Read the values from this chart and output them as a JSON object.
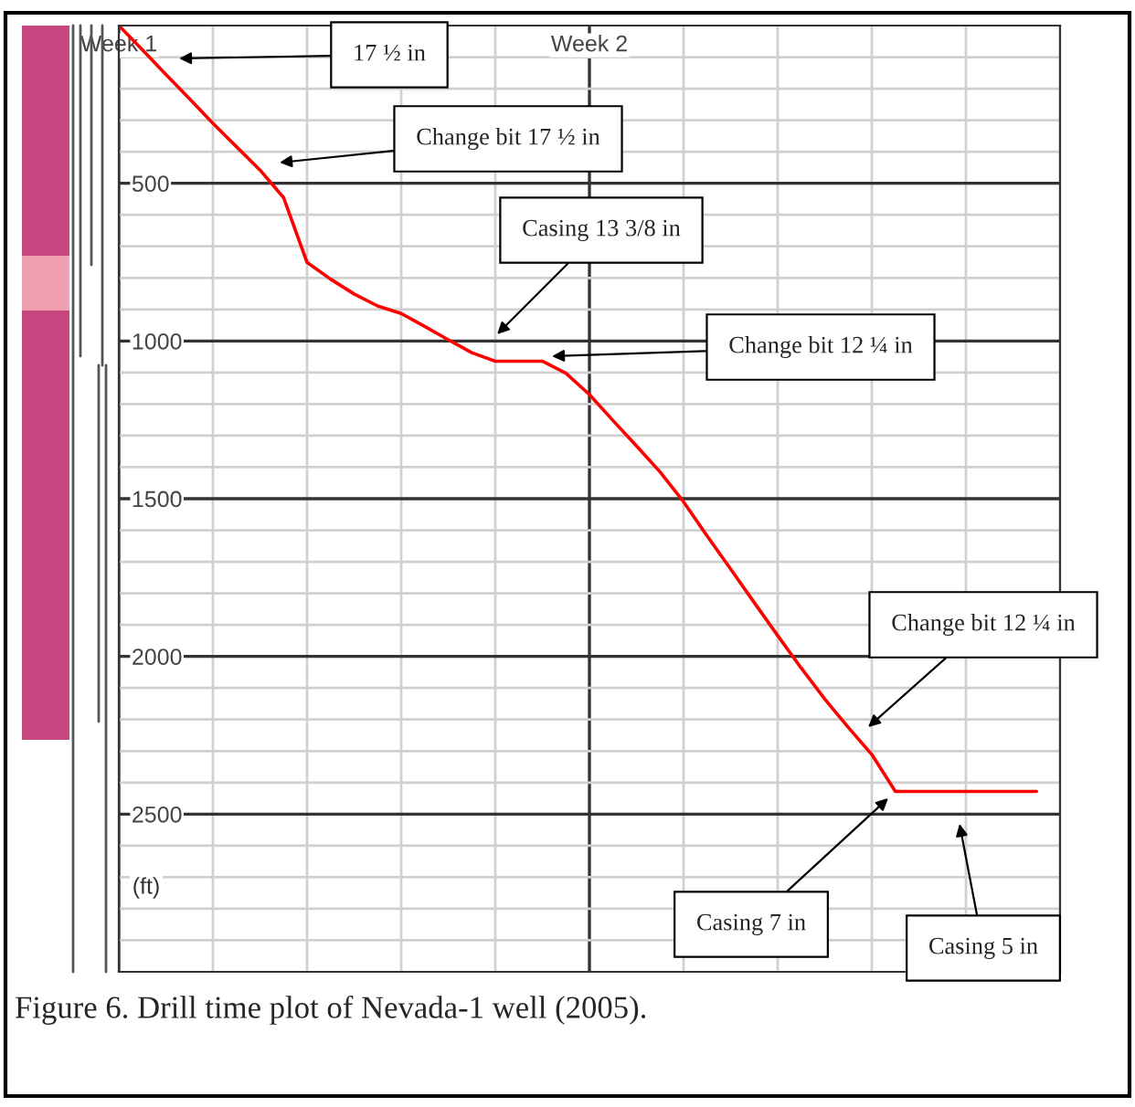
{
  "chart_data": {
    "type": "line",
    "categories": [
      "Week 1",
      null,
      null,
      null,
      null,
      null,
      null,
      null,
      null,
      null,
      null,
      null,
      null,
      null,
      null,
      null,
      null,
      null,
      null,
      null,
      "Week 2",
      null,
      null,
      null,
      null,
      null,
      null,
      null,
      null,
      null,
      null,
      null,
      null,
      null,
      null,
      null,
      null,
      null,
      null,
      null,
      null
    ],
    "series": [
      {
        "color": "#ff0000",
        "values": [
          0,
          77,
          155,
          232,
          310,
          384,
          458,
          545,
          751,
          804,
          851,
          889,
          913,
          954,
          996,
          1037,
          1064,
          1064,
          1064,
          1102,
          1170,
          1252,
          1333,
          1415,
          1510,
          1618,
          1723,
          1829,
          1934,
          2037,
          2135,
          2225,
          2311,
          2428,
          2428,
          2428,
          2428,
          2428,
          2428,
          2428,
          null
        ]
      }
    ],
    "ylabel": "(ft)",
    "ylim": [
      3000,
      0
    ],
    "yticks": [
      {
        "value": 100,
        "label": null
      },
      {
        "value": 200,
        "label": null
      },
      {
        "value": 300,
        "label": null
      },
      {
        "value": 400,
        "label": null
      },
      500,
      {
        "value": 600,
        "label": null
      },
      {
        "value": 700,
        "label": null
      },
      {
        "value": 800,
        "label": null
      },
      {
        "value": 900,
        "label": null
      },
      1000,
      {
        "value": 1100,
        "label": null
      },
      {
        "value": 1200,
        "label": null
      },
      {
        "value": 1300,
        "label": null
      },
      {
        "value": 1400,
        "label": null
      },
      1500,
      {
        "value": 1600,
        "label": null
      },
      {
        "value": 1700,
        "label": null
      },
      {
        "value": 1800,
        "label": null
      },
      {
        "value": 1900,
        "label": null
      },
      2000,
      {
        "value": 2100,
        "label": null
      },
      {
        "value": 2200,
        "label": null
      },
      {
        "value": 2300,
        "label": null
      },
      {
        "value": 2400,
        "label": null
      },
      2500,
      {
        "value": 2600,
        "label": null
      },
      {
        "value": 2700,
        "label": null
      },
      {
        "value": 2800,
        "label": null
      },
      {
        "value": 2900,
        "label": null
      }
    ],
    "grid": true,
    "line_style": "solid",
    "marker": "none",
    "annotations": [
      "17 ½ in",
      "Change bit 17 ½ in",
      "Casing 13 3/8 in",
      "Change bit 12 ¼ in",
      "Change bit 12 ¼ in",
      "Casing 7 in",
      "Casing 5 in",
      "Figure 6. Drill time plot of Nevada-1 well (2005)."
    ]
  }
}
